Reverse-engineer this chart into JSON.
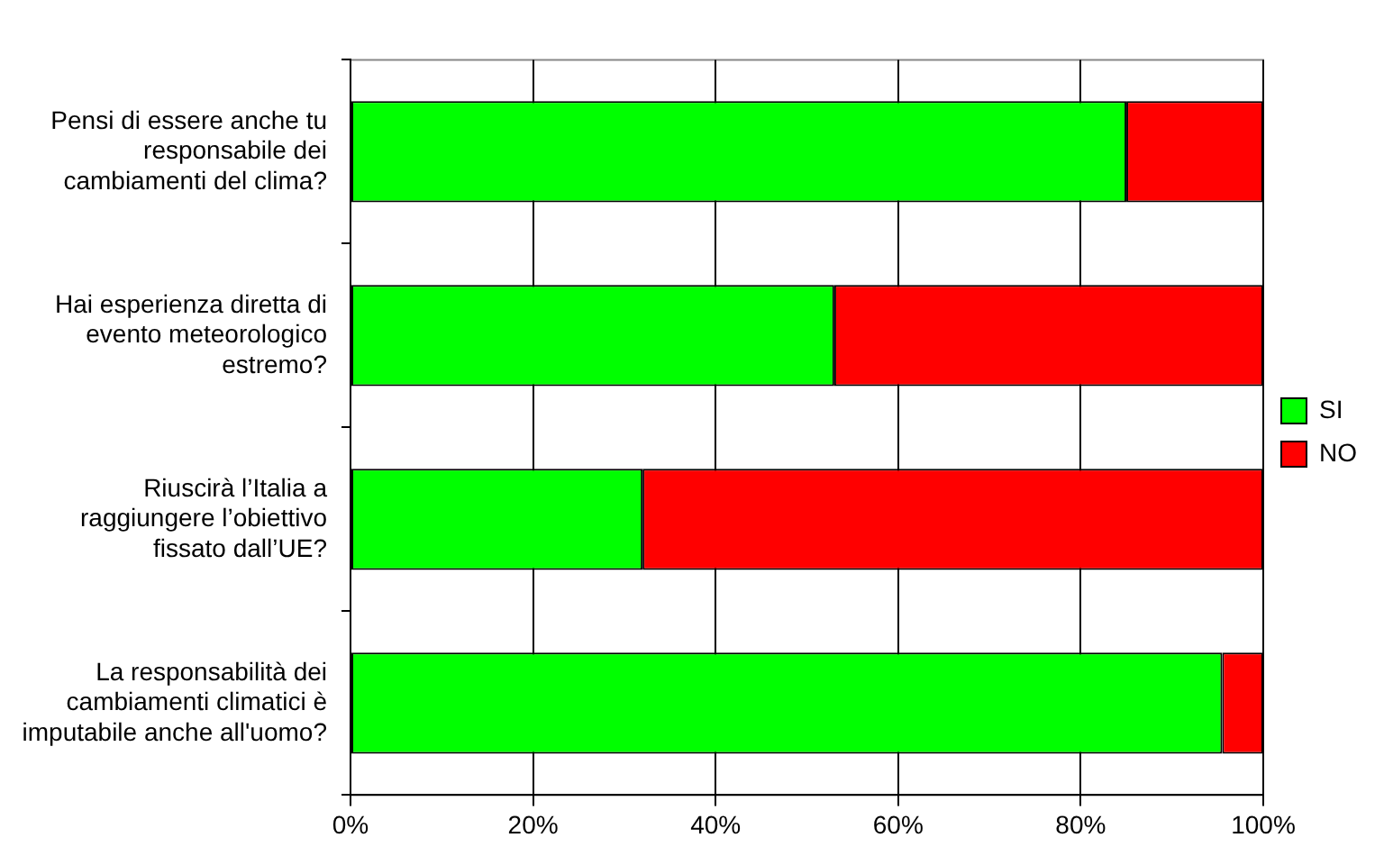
{
  "chart_data": {
    "type": "bar",
    "orientation": "horizontal",
    "stacked": true,
    "categories": [
      "Pensi di essere anche tu responsabile dei cambiamenti del clima?",
      "Hai esperienza diretta di evento meteorologico estremo?",
      "Riuscirà l’Italia a raggiungere l’obiettivo fissato dall’UE?",
      "La responsabilità dei cambiamenti climatici è imputabile anche all'uomo?"
    ],
    "series": [
      {
        "name": "SI",
        "color": "#00ff00",
        "values": [
          85,
          53,
          32,
          95.5
        ]
      },
      {
        "name": "NO",
        "color": "#ff0000",
        "values": [
          15,
          47,
          68,
          4.5
        ]
      }
    ],
    "xlim": [
      0,
      100
    ],
    "xticks": [
      {
        "value": 0,
        "label": "0%"
      },
      {
        "value": 20,
        "label": "20%"
      },
      {
        "value": 40,
        "label": "40%"
      },
      {
        "value": 60,
        "label": "60%"
      },
      {
        "value": 80,
        "label": "80%"
      },
      {
        "value": 100,
        "label": "100%"
      }
    ],
    "grid": "x",
    "legend": "right"
  }
}
